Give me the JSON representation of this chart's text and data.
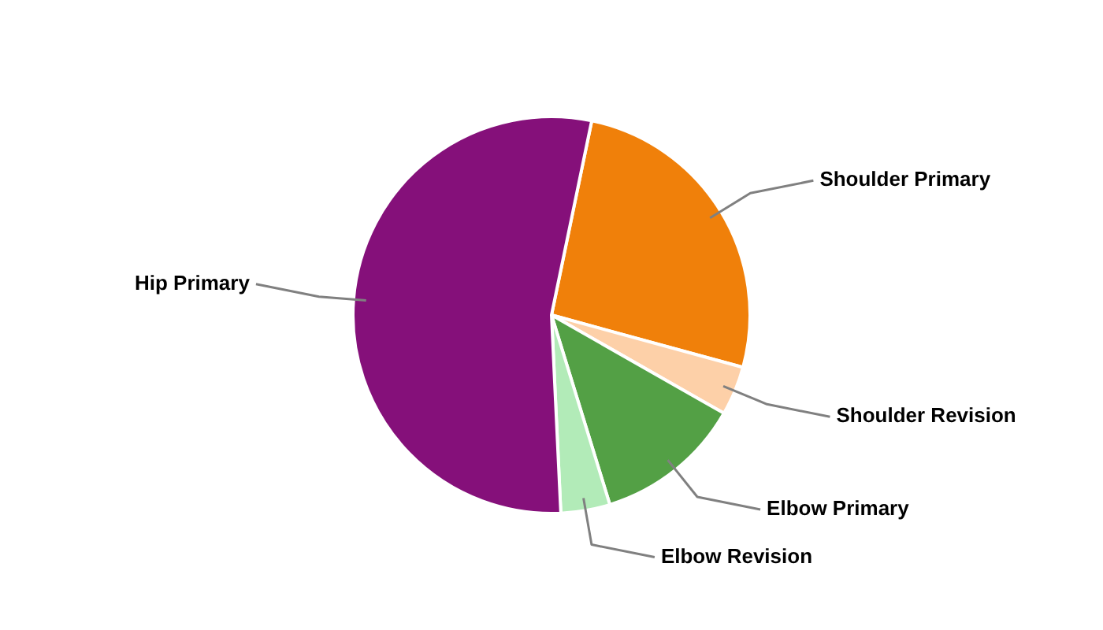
{
  "chart_data": {
    "type": "pie",
    "categories": [
      "Shoulder Primary",
      "Shoulder Revision",
      "Elbow Primary",
      "Elbow Revision",
      "Hip Primary"
    ],
    "values": [
      26,
      4,
      12,
      4,
      54
    ],
    "colors": [
      "#f0800a",
      "#fdd0a8",
      "#53a045",
      "#b2ebb8",
      "#85107a"
    ],
    "legend": false
  }
}
